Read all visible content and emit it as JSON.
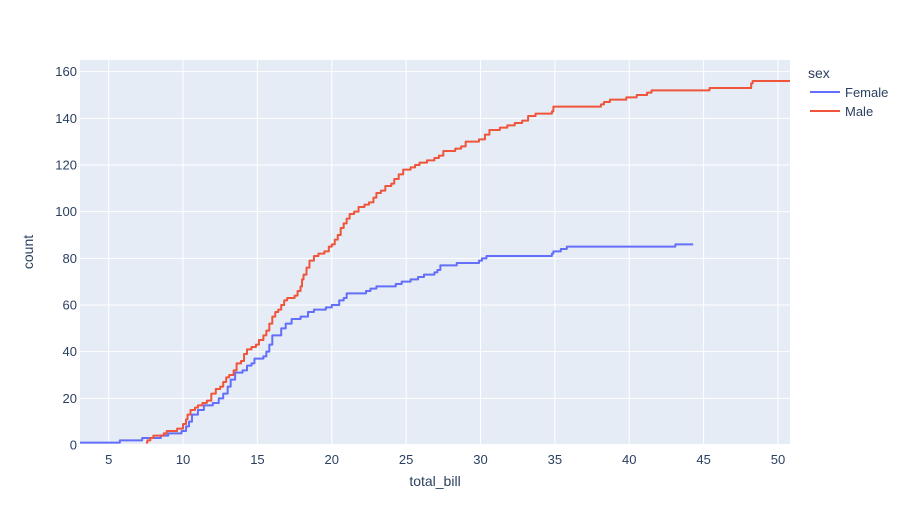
{
  "chart_data": {
    "type": "line",
    "line_shape": "step",
    "xlabel": "total_bill",
    "ylabel": "count",
    "xlim": [
      3.07,
      50.81
    ],
    "ylim": [
      0,
      165
    ],
    "x_ticks": [
      5,
      10,
      15,
      20,
      25,
      30,
      35,
      40,
      45,
      50
    ],
    "y_ticks": [
      0,
      20,
      40,
      60,
      80,
      100,
      120,
      140,
      160
    ],
    "grid": true,
    "plot_background": "#e5ecf6",
    "legend": {
      "title": "sex",
      "placement": "top-right"
    },
    "series": [
      {
        "name": "Female",
        "color": "#636efa",
        "points": [
          [
            3.07,
            1
          ],
          [
            5.75,
            2
          ],
          [
            7.25,
            3
          ],
          [
            8.5,
            4
          ],
          [
            9.0,
            5
          ],
          [
            9.9,
            6
          ],
          [
            10.2,
            8
          ],
          [
            10.4,
            10
          ],
          [
            10.6,
            13
          ],
          [
            11.0,
            15
          ],
          [
            11.4,
            17
          ],
          [
            12.0,
            18
          ],
          [
            12.4,
            20
          ],
          [
            12.7,
            22
          ],
          [
            13.0,
            25
          ],
          [
            13.2,
            28
          ],
          [
            13.5,
            31
          ],
          [
            14.0,
            32
          ],
          [
            14.3,
            34
          ],
          [
            14.6,
            35
          ],
          [
            14.8,
            37
          ],
          [
            15.4,
            38
          ],
          [
            15.6,
            40
          ],
          [
            15.8,
            43
          ],
          [
            16.0,
            47
          ],
          [
            16.6,
            50
          ],
          [
            16.9,
            52
          ],
          [
            17.3,
            54
          ],
          [
            17.9,
            55
          ],
          [
            18.4,
            57
          ],
          [
            18.8,
            58
          ],
          [
            19.6,
            59
          ],
          [
            20.0,
            60
          ],
          [
            20.5,
            62
          ],
          [
            20.8,
            63
          ],
          [
            21.0,
            65
          ],
          [
            22.3,
            66
          ],
          [
            22.6,
            67
          ],
          [
            23.0,
            68
          ],
          [
            24.3,
            69
          ],
          [
            24.7,
            70
          ],
          [
            25.3,
            71
          ],
          [
            25.8,
            72
          ],
          [
            26.2,
            73
          ],
          [
            26.9,
            74
          ],
          [
            27.1,
            75
          ],
          [
            27.3,
            77
          ],
          [
            28.4,
            78
          ],
          [
            29.9,
            79
          ],
          [
            30.1,
            80
          ],
          [
            30.4,
            81
          ],
          [
            34.8,
            82
          ],
          [
            34.9,
            83
          ],
          [
            35.4,
            84
          ],
          [
            35.8,
            85
          ],
          [
            43.1,
            86
          ],
          [
            44.3,
            86
          ]
        ]
      },
      {
        "name": "Male",
        "color": "#ef553b",
        "points": [
          [
            7.51,
            1
          ],
          [
            7.6,
            2
          ],
          [
            7.8,
            3
          ],
          [
            8.0,
            4
          ],
          [
            8.7,
            5
          ],
          [
            8.9,
            6
          ],
          [
            9.6,
            7
          ],
          [
            10.0,
            9
          ],
          [
            10.2,
            11
          ],
          [
            10.3,
            13
          ],
          [
            10.5,
            15
          ],
          [
            10.8,
            16
          ],
          [
            11.0,
            17
          ],
          [
            11.3,
            18
          ],
          [
            11.6,
            19
          ],
          [
            11.9,
            22
          ],
          [
            12.2,
            24
          ],
          [
            12.5,
            25
          ],
          [
            12.7,
            27
          ],
          [
            12.9,
            29
          ],
          [
            13.1,
            30
          ],
          [
            13.4,
            32
          ],
          [
            13.6,
            35
          ],
          [
            13.9,
            36
          ],
          [
            14.1,
            39
          ],
          [
            14.3,
            41
          ],
          [
            14.6,
            42
          ],
          [
            14.9,
            43
          ],
          [
            15.1,
            45
          ],
          [
            15.4,
            47
          ],
          [
            15.6,
            49
          ],
          [
            15.8,
            52
          ],
          [
            16.0,
            55
          ],
          [
            16.2,
            57
          ],
          [
            16.4,
            58
          ],
          [
            16.6,
            60
          ],
          [
            16.8,
            62
          ],
          [
            17.0,
            63
          ],
          [
            17.5,
            64
          ],
          [
            17.7,
            66
          ],
          [
            17.9,
            68
          ],
          [
            18.0,
            71
          ],
          [
            18.1,
            73
          ],
          [
            18.3,
            76
          ],
          [
            18.5,
            79
          ],
          [
            18.8,
            81
          ],
          [
            19.1,
            82
          ],
          [
            19.5,
            83
          ],
          [
            19.8,
            85
          ],
          [
            20.0,
            86
          ],
          [
            20.2,
            88
          ],
          [
            20.4,
            90
          ],
          [
            20.6,
            93
          ],
          [
            20.8,
            95
          ],
          [
            21.0,
            97
          ],
          [
            21.2,
            99
          ],
          [
            21.5,
            100
          ],
          [
            21.8,
            102
          ],
          [
            22.2,
            103
          ],
          [
            22.5,
            104
          ],
          [
            22.8,
            106
          ],
          [
            23.0,
            108
          ],
          [
            23.3,
            109
          ],
          [
            23.6,
            111
          ],
          [
            24.0,
            112
          ],
          [
            24.2,
            114
          ],
          [
            24.5,
            116
          ],
          [
            24.8,
            118
          ],
          [
            25.3,
            119
          ],
          [
            25.6,
            120
          ],
          [
            25.9,
            121
          ],
          [
            26.4,
            122
          ],
          [
            26.9,
            123
          ],
          [
            27.2,
            124
          ],
          [
            27.5,
            126
          ],
          [
            28.3,
            127
          ],
          [
            28.7,
            128
          ],
          [
            29.0,
            130
          ],
          [
            29.9,
            131
          ],
          [
            30.3,
            133
          ],
          [
            30.6,
            135
          ],
          [
            31.3,
            136
          ],
          [
            31.8,
            137
          ],
          [
            32.3,
            138
          ],
          [
            32.8,
            139
          ],
          [
            33.2,
            141
          ],
          [
            33.7,
            142
          ],
          [
            34.8,
            143
          ],
          [
            34.9,
            145
          ],
          [
            38.1,
            146
          ],
          [
            38.3,
            147
          ],
          [
            38.7,
            148
          ],
          [
            39.4,
            148
          ],
          [
            39.8,
            149
          ],
          [
            40.5,
            150
          ],
          [
            41.2,
            151
          ],
          [
            41.5,
            152
          ],
          [
            45.4,
            153
          ],
          [
            48.2,
            155
          ],
          [
            48.3,
            156
          ],
          [
            50.81,
            156
          ]
        ]
      }
    ]
  }
}
